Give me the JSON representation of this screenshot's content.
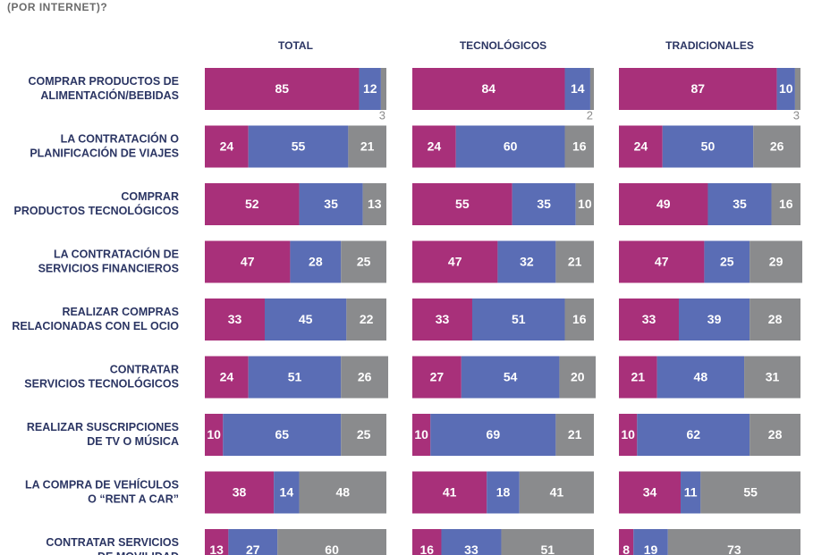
{
  "chart_data": {
    "type": "bar",
    "orientation": "horizontal",
    "stacked": true,
    "title": "(POR INTERNET)?",
    "xlim": [
      0,
      100
    ],
    "categories": [
      [
        "COMPRAR PRODUCTOS DE",
        "ALIMENTACIÓN/BEBIDAS"
      ],
      [
        "LA CONTRATACIÓN O",
        "PLANIFICACIÓN DE VIAJES"
      ],
      [
        "COMPRAR",
        "PRODUCTOS TECNOLÓGICOS"
      ],
      [
        "LA CONTRATACIÓN DE",
        "SERVICIOS FINANCIEROS"
      ],
      [
        "REALIZAR COMPRAS",
        "RELACIONADAS CON EL OCIO"
      ],
      [
        "CONTRATAR",
        "SERVICIOS TECNOLÓGICOS"
      ],
      [
        "REALIZAR SUSCRIPCIONES",
        "DE TV O MÚSICA"
      ],
      [
        "LA COMPRA DE VEHÍCULOS",
        "O “RENT A CAR”"
      ],
      [
        "CONTRATAR SERVICIOS",
        "DE MOVILIDAD"
      ]
    ],
    "panels": [
      {
        "title": "TOTAL",
        "series": [
          {
            "color": "#a8307a",
            "values": [
              85,
              24,
              52,
              47,
              33,
              24,
              10,
              38,
              13
            ]
          },
          {
            "color": "#5a6db5",
            "values": [
              12,
              55,
              35,
              28,
              45,
              51,
              65,
              14,
              27
            ]
          },
          {
            "color": "#8a8b8d",
            "values": [
              3,
              21,
              13,
              25,
              22,
              26,
              25,
              48,
              60
            ]
          }
        ]
      },
      {
        "title": "TECNOLÓGICOS",
        "series": [
          {
            "color": "#a8307a",
            "values": [
              84,
              24,
              55,
              47,
              33,
              27,
              10,
              41,
              16
            ]
          },
          {
            "color": "#5a6db5",
            "values": [
              14,
              60,
              35,
              32,
              51,
              54,
              69,
              18,
              33
            ]
          },
          {
            "color": "#8a8b8d",
            "values": [
              2,
              16,
              10,
              21,
              16,
              20,
              21,
              41,
              51
            ]
          }
        ]
      },
      {
        "title": "TRADICIONALES",
        "series": [
          {
            "color": "#a8307a",
            "values": [
              87,
              24,
              49,
              47,
              33,
              21,
              10,
              34,
              8
            ]
          },
          {
            "color": "#5a6db5",
            "values": [
              10,
              50,
              35,
              25,
              39,
              48,
              62,
              11,
              19
            ]
          },
          {
            "color": "#8a8b8d",
            "values": [
              3,
              26,
              16,
              29,
              28,
              31,
              28,
              55,
              73
            ]
          }
        ]
      }
    ]
  }
}
